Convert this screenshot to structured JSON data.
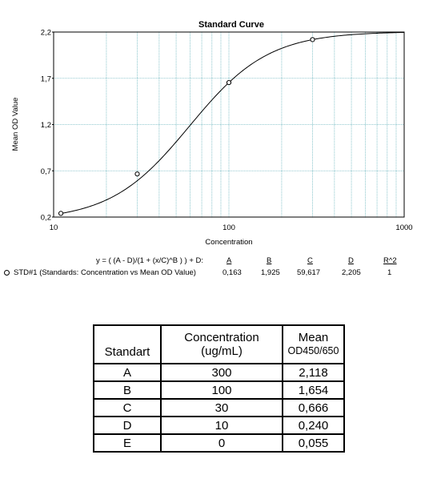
{
  "chart_data": {
    "type": "scatter",
    "title": "Standard Curve",
    "xlabel": "Concentration",
    "ylabel": "Mean OD Value",
    "xscale": "log",
    "xlim": [
      10,
      1000
    ],
    "ylim": [
      0.2,
      2.2
    ],
    "x_ticks": [
      "10",
      "100",
      "1000"
    ],
    "y_ticks": [
      "0,2",
      "0,7",
      "1,2",
      "1,7",
      "2,2"
    ],
    "y_tick_values": [
      0.2,
      0.7,
      1.2,
      1.7,
      2.2
    ],
    "grid": true,
    "series": [
      {
        "name": "STD#1 (Standards: Concentration vs Mean OD Value)",
        "x": [
          10,
          30,
          100,
          300
        ],
        "y": [
          0.24,
          0.666,
          1.654,
          2.118
        ]
      }
    ],
    "fit": {
      "equation": "y = ( (A - D)/(1 + (x/C)^B ) ) + D:",
      "params": {
        "A": 0.163,
        "B": 1.925,
        "C": 59.617,
        "D": 2.205
      }
    }
  },
  "fit_header": {
    "equation": "y = ( (A - D)/(1 + (x/C)^B ) ) + D:",
    "labels": [
      "A",
      "B",
      "C",
      "D",
      "R^2"
    ]
  },
  "fit_row": {
    "series_label": "STD#1 (Standards: Concentration vs Mean OD Value)",
    "values": [
      "0,163",
      "1,925",
      "59,617",
      "2,205",
      "1"
    ]
  },
  "table": {
    "header": {
      "col1": "Standart",
      "col2_line1": "Concentration",
      "col2_line2": "(ug/mL)",
      "col3_line1": "Mean",
      "col3_line2": "OD450/650"
    },
    "rows": [
      {
        "standard": "A",
        "concentration": "300",
        "od": "2,118"
      },
      {
        "standard": "B",
        "concentration": "100",
        "od": "1,654"
      },
      {
        "standard": "C",
        "concentration": "30",
        "od": "0,666"
      },
      {
        "standard": "D",
        "concentration": "10",
        "od": "0,240"
      },
      {
        "standard": "E",
        "concentration": "0",
        "od": "0,055"
      }
    ]
  }
}
